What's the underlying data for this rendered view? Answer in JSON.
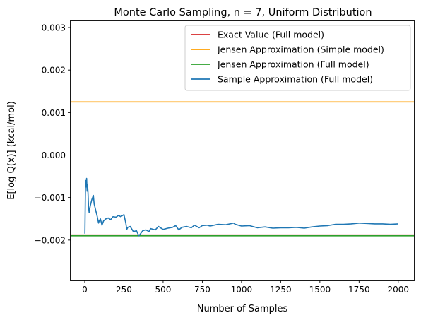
{
  "chart_data": {
    "type": "line",
    "title": "Monte Carlo Sampling, n = 7, Uniform Distribution",
    "xlabel": "Number of Samples",
    "ylabel": "E[log Q(x)] (kcal/mol)",
    "xlim": [
      -90,
      2100
    ],
    "ylim": [
      -0.00295,
      0.00315
    ],
    "x_ticks": [
      {
        "value": 0,
        "label": "0"
      },
      {
        "value": 250,
        "label": "250"
      },
      {
        "value": 500,
        "label": "500"
      },
      {
        "value": 750,
        "label": "750"
      },
      {
        "value": 1000,
        "label": "1000"
      },
      {
        "value": 1250,
        "label": "1250"
      },
      {
        "value": 1500,
        "label": "1500"
      },
      {
        "value": 1750,
        "label": "1750"
      },
      {
        "value": 2000,
        "label": "2000"
      }
    ],
    "y_ticks": [
      {
        "value": -0.002,
        "label": "−0.002"
      },
      {
        "value": -0.001,
        "label": "−0.001"
      },
      {
        "value": 0.0,
        "label": "0.000"
      },
      {
        "value": 0.001,
        "label": "0.001"
      },
      {
        "value": 0.002,
        "label": "0.002"
      },
      {
        "value": 0.003,
        "label": "0.003"
      }
    ],
    "grid": false,
    "legend_position": "top-right",
    "hlines": [
      {
        "name": "Exact Value (Full model)",
        "y": -0.00188,
        "color": "#d62728"
      },
      {
        "name": "Jensen Approximation (Simple model)",
        "y": 0.00125,
        "color": "#ff9f00"
      },
      {
        "name": "Jensen Approximation (Full model)",
        "y": -0.0019,
        "color": "#2ca02c"
      }
    ],
    "series": [
      {
        "name": "Sample Approximation (Full model)",
        "color": "#1f77b4",
        "x": [
          1,
          5,
          8,
          12,
          15,
          18,
          21,
          24,
          28,
          35,
          45,
          55,
          60,
          70,
          80,
          88,
          92,
          100,
          110,
          120,
          135,
          150,
          165,
          180,
          200,
          215,
          230,
          250,
          262,
          268,
          275,
          290,
          310,
          330,
          345,
          350,
          370,
          390,
          410,
          420,
          450,
          470,
          500,
          530,
          560,
          580,
          600,
          620,
          650,
          680,
          700,
          730,
          750,
          780,
          800,
          850,
          900,
          950,
          960,
          1000,
          1050,
          1100,
          1150,
          1200,
          1250,
          1300,
          1350,
          1400,
          1450,
          1500,
          1550,
          1600,
          1650,
          1700,
          1750,
          1800,
          1850,
          1900,
          1950,
          2000
        ],
        "y": [
          -0.00185,
          -0.0006,
          -0.00075,
          -0.00055,
          -0.00085,
          -0.0007,
          -0.0009,
          -0.0012,
          -0.00135,
          -0.0012,
          -0.00105,
          -0.00095,
          -0.00115,
          -0.0013,
          -0.00145,
          -0.0016,
          -0.00155,
          -0.0015,
          -0.00165,
          -0.00155,
          -0.0015,
          -0.00148,
          -0.00152,
          -0.00145,
          -0.00146,
          -0.00142,
          -0.00145,
          -0.0014,
          -0.0016,
          -0.00175,
          -0.0017,
          -0.00168,
          -0.0018,
          -0.00178,
          -0.0019,
          -0.00188,
          -0.00178,
          -0.00176,
          -0.0018,
          -0.00173,
          -0.00176,
          -0.00168,
          -0.00175,
          -0.00172,
          -0.0017,
          -0.00166,
          -0.00176,
          -0.0017,
          -0.00168,
          -0.00171,
          -0.00165,
          -0.00171,
          -0.00166,
          -0.00165,
          -0.00167,
          -0.00163,
          -0.00164,
          -0.0016,
          -0.00163,
          -0.00167,
          -0.00166,
          -0.00171,
          -0.00169,
          -0.00172,
          -0.00171,
          -0.00171,
          -0.0017,
          -0.00172,
          -0.00169,
          -0.00167,
          -0.00166,
          -0.00163,
          -0.00163,
          -0.00162,
          -0.0016,
          -0.00161,
          -0.00162,
          -0.00162,
          -0.00163,
          -0.00162
        ]
      }
    ]
  }
}
